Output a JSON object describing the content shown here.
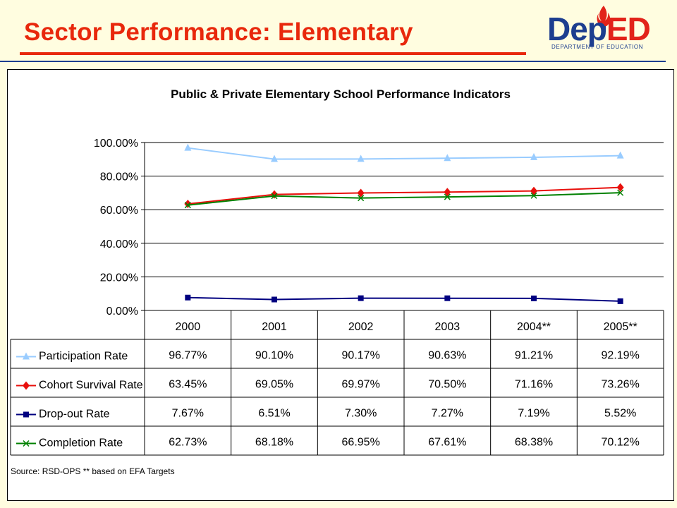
{
  "slide": {
    "title": "Sector Performance:  Elementary",
    "logo": {
      "word_blue": "Dep",
      "word_red": "ED",
      "tagline": "DEPARTMENT OF EDUCATION"
    }
  },
  "colors": {
    "title": "#e8280c",
    "brand_blue": "#1d3e8f",
    "brand_red": "#e2231a"
  },
  "chart_data": {
    "type": "line",
    "title": "Public & Private Elementary School Performance Indicators",
    "categories": [
      "2000",
      "2001",
      "2002",
      "2003",
      "2004**",
      "2005**"
    ],
    "ylim": [
      0,
      100
    ],
    "yticks": [
      "0.00%",
      "20.00%",
      "40.00%",
      "60.00%",
      "80.00%",
      "100.00%"
    ],
    "grid": true,
    "legend": "data-table",
    "series": [
      {
        "name": "Participation Rate",
        "color": "#99ccff",
        "marker": "triangle",
        "values": [
          96.77,
          90.1,
          90.17,
          90.63,
          91.21,
          92.19
        ],
        "labels": [
          "96.77%",
          "90.10%",
          "90.17%",
          "90.63%",
          "91.21%",
          "92.19%"
        ]
      },
      {
        "name": "Cohort Survival Rate",
        "color": "#e8100c",
        "marker": "diamond",
        "values": [
          63.45,
          69.05,
          69.97,
          70.5,
          71.16,
          73.26
        ],
        "labels": [
          "63.45%",
          "69.05%",
          "69.97%",
          "70.50%",
          "71.16%",
          "73.26%"
        ]
      },
      {
        "name": "Drop-out Rate",
        "color": "#000080",
        "marker": "square",
        "values": [
          7.67,
          6.51,
          7.3,
          7.27,
          7.19,
          5.52
        ],
        "labels": [
          "7.67%",
          "6.51%",
          "7.30%",
          "7.27%",
          "7.19%",
          "5.52%"
        ]
      },
      {
        "name": "Completion Rate",
        "color": "#008000",
        "marker": "x",
        "values": [
          62.73,
          68.18,
          66.95,
          67.61,
          68.38,
          70.12
        ],
        "labels": [
          "62.73%",
          "68.18%",
          "66.95%",
          "67.61%",
          "68.38%",
          "70.12%"
        ]
      }
    ],
    "source_note": "Source: RSD-OPS ** based on EFA Targets"
  }
}
